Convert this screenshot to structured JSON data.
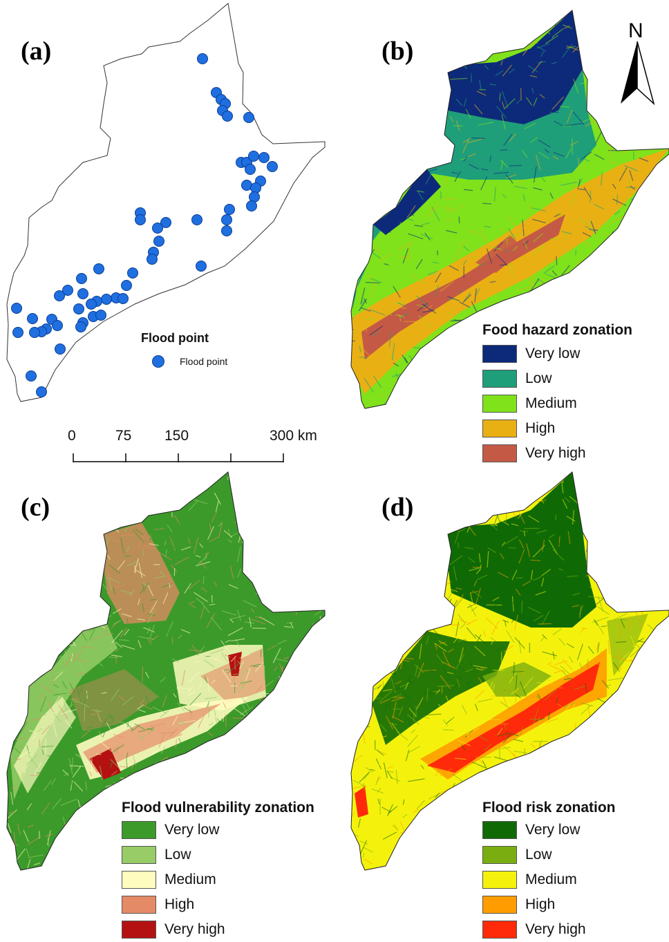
{
  "panels": {
    "a": "(a)",
    "b": "(b)",
    "c": "(c)",
    "d": "(d)"
  },
  "north_arrow": {
    "label": "N"
  },
  "scale_bar": {
    "ticks": [
      "0",
      "75",
      "150",
      "300 km"
    ]
  },
  "flood_point_legend": {
    "title": "Flood point",
    "item": "Flood point",
    "color": "#1f6fe0",
    "count": 58
  },
  "hazard_legend": {
    "title": "Food hazard zonation",
    "items": [
      {
        "label": "Very low",
        "color": "#0d2a7a"
      },
      {
        "label": "Low",
        "color": "#1f9e7a"
      },
      {
        "label": "Medium",
        "color": "#7fe21a"
      },
      {
        "label": "High",
        "color": "#e9b014"
      },
      {
        "label": "Very high",
        "color": "#c45a45"
      }
    ]
  },
  "vulnerability_legend": {
    "title": "Flood vulnerability zonation",
    "items": [
      {
        "label": "Very low",
        "color": "#3b9a2a"
      },
      {
        "label": "Low",
        "color": "#97cc66"
      },
      {
        "label": "Medium",
        "color": "#fffcc0"
      },
      {
        "label": "High",
        "color": "#e58a66"
      },
      {
        "label": "Very high",
        "color": "#b41212"
      }
    ]
  },
  "risk_legend": {
    "title": "Flood risk zonation",
    "items": [
      {
        "label": "Very low",
        "color": "#0f6a05"
      },
      {
        "label": "Low",
        "color": "#7aae10"
      },
      {
        "label": "Medium",
        "color": "#f4f20c"
      },
      {
        "label": "High",
        "color": "#ff9d00"
      },
      {
        "label": "Very high",
        "color": "#ff2a0a"
      }
    ]
  }
}
